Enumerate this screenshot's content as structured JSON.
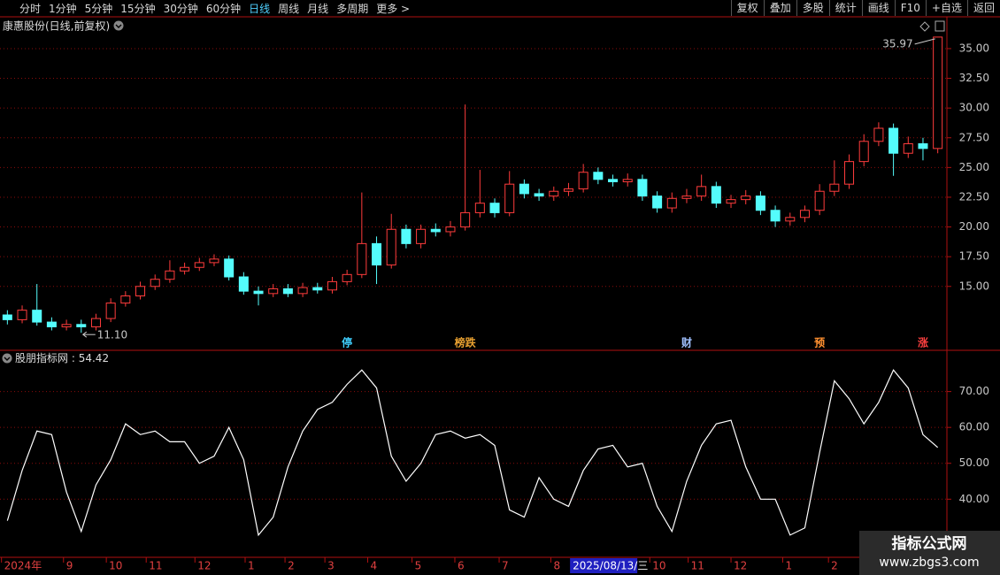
{
  "toolbar": {
    "periods": [
      "分时",
      "1分钟",
      "5分钟",
      "15分钟",
      "30分钟",
      "60分钟",
      "日线",
      "周线",
      "月线",
      "多周期",
      "更多 >"
    ],
    "active_index": 6,
    "buttons": [
      "复权",
      "叠加",
      "多股",
      "统计",
      "画线",
      "F10",
      "+自选",
      "返回"
    ]
  },
  "chart_data": [
    {
      "type": "candlestick",
      "title": "康惠股份(日线,前复权)",
      "open": [
        12.6,
        12.2,
        13.0,
        12.0,
        11.6,
        11.8,
        11.6,
        12.3,
        13.6,
        14.2,
        15.0,
        15.6,
        16.3,
        16.6,
        17.0,
        17.3,
        15.8,
        14.6,
        14.4,
        14.8,
        14.4,
        14.9,
        14.7,
        15.4,
        16.0,
        18.6,
        16.8,
        19.8,
        18.6,
        19.8,
        19.6,
        20.0,
        21.2,
        22.0,
        21.2,
        23.6,
        22.8,
        22.6,
        23.0,
        23.2,
        24.6,
        24.0,
        23.8,
        24.0,
        22.6,
        21.6,
        22.4,
        22.6,
        23.4,
        22.0,
        22.3,
        22.6,
        21.4,
        20.5,
        20.8,
        21.4,
        23.0,
        23.6,
        25.5,
        27.2,
        28.3,
        26.2,
        27.0,
        26.6
      ],
      "high": [
        13.0,
        13.4,
        15.2,
        12.4,
        12.2,
        12.2,
        12.7,
        14.0,
        14.6,
        15.4,
        16.0,
        17.2,
        17.0,
        17.4,
        17.7,
        17.6,
        16.2,
        15.0,
        15.2,
        15.2,
        15.3,
        15.3,
        15.8,
        16.4,
        22.9,
        19.2,
        21.1,
        20.2,
        20.2,
        20.3,
        20.5,
        30.3,
        24.8,
        22.4,
        24.7,
        24.0,
        23.2,
        23.4,
        23.7,
        25.3,
        25.0,
        24.4,
        24.5,
        24.4,
        23.0,
        22.9,
        23.2,
        24.4,
        23.8,
        22.7,
        23.1,
        23.0,
        21.8,
        21.2,
        21.8,
        23.6,
        25.6,
        26.1,
        27.8,
        28.8,
        28.7,
        27.6,
        27.5,
        35.97
      ],
      "low": [
        11.8,
        11.9,
        11.7,
        11.3,
        11.3,
        11.1,
        11.3,
        12.0,
        13.3,
        13.9,
        14.7,
        15.3,
        16.0,
        16.3,
        16.7,
        15.5,
        14.3,
        13.4,
        14.1,
        14.1,
        14.1,
        14.4,
        14.4,
        15.1,
        15.7,
        15.2,
        16.5,
        18.2,
        18.2,
        19.2,
        19.2,
        19.7,
        20.8,
        20.8,
        20.9,
        22.4,
        22.2,
        22.2,
        22.6,
        22.9,
        23.6,
        23.4,
        23.4,
        22.2,
        21.2,
        21.2,
        22.0,
        22.2,
        21.6,
        21.6,
        21.9,
        21.0,
        20.0,
        20.1,
        20.4,
        21.0,
        22.6,
        23.2,
        25.1,
        26.8,
        24.3,
        25.8,
        25.6,
        26.2
      ],
      "close": [
        12.2,
        13.0,
        12.0,
        11.6,
        11.8,
        11.6,
        12.3,
        13.6,
        14.2,
        15.0,
        15.6,
        16.3,
        16.6,
        17.0,
        17.3,
        15.8,
        14.6,
        14.4,
        14.8,
        14.4,
        14.9,
        14.7,
        15.4,
        16.0,
        18.6,
        16.8,
        19.8,
        18.6,
        19.8,
        19.6,
        20.0,
        21.2,
        22.0,
        21.2,
        23.6,
        22.8,
        22.6,
        23.0,
        23.2,
        24.6,
        24.0,
        23.8,
        24.0,
        22.6,
        21.6,
        22.4,
        22.6,
        23.4,
        22.0,
        22.3,
        22.6,
        21.4,
        20.5,
        20.8,
        21.4,
        23.0,
        23.6,
        25.5,
        27.2,
        28.3,
        26.2,
        27.0,
        26.6,
        35.97
      ],
      "max_label": "35.97",
      "min_label": "11.10",
      "up_color": "#ff3c3c",
      "down_color": "#54fcfc",
      "ylim": [
        9.7,
        37.6
      ],
      "yticks": [
        {
          "value": 15,
          "label": "15.00"
        },
        {
          "value": 17.5,
          "label": "17.50"
        },
        {
          "value": 20,
          "label": "20.00"
        },
        {
          "value": 22.5,
          "label": "22.50"
        },
        {
          "value": 25,
          "label": "25.00"
        },
        {
          "value": 27.5,
          "label": "27.50"
        },
        {
          "value": 30,
          "label": "30.00"
        },
        {
          "value": 32.5,
          "label": "32.50"
        },
        {
          "value": 35,
          "label": "35.00"
        }
      ],
      "grid": true,
      "markers": [
        {
          "index": 23,
          "label": "停",
          "color": "#40d0ff"
        },
        {
          "index": 31,
          "label": "榜跌",
          "color": "#e8a030"
        },
        {
          "index": 46,
          "label": "财",
          "color": "#a0c0ff"
        },
        {
          "index": 55,
          "label": "预",
          "color": "#ff9030"
        },
        {
          "index": 62,
          "label": "涨",
          "color": "#ff4040"
        }
      ]
    },
    {
      "type": "line",
      "series": [
        {
          "name": "股朋指标网",
          "color": "#ffffff",
          "values": [
            34,
            48,
            59,
            58,
            42,
            31,
            44,
            51,
            61,
            58,
            59,
            56,
            56,
            50,
            52,
            60,
            51,
            30,
            35,
            49,
            59,
            65,
            67,
            72,
            76,
            71,
            52,
            45,
            50,
            58,
            59,
            57,
            58,
            55,
            37,
            35,
            46,
            40,
            38,
            48,
            54,
            55,
            49,
            50,
            38,
            31,
            45,
            55,
            61,
            62,
            49,
            40,
            40,
            30,
            32,
            53,
            73,
            68,
            61,
            67,
            76,
            71,
            58,
            54.42
          ]
        }
      ],
      "value_separator": ":",
      "ylim": [
        23.8,
        81
      ],
      "yticks": [
        {
          "value": 40,
          "label": "40.00"
        },
        {
          "value": 50,
          "label": "50.00"
        },
        {
          "value": 60,
          "label": "60.00"
        },
        {
          "value": 70,
          "label": "70.00"
        }
      ],
      "grid": true
    }
  ],
  "x_axis": {
    "ticks": [
      {
        "value": 0.1,
        "label": "2024年"
      },
      {
        "value": 4.3,
        "label": "9"
      },
      {
        "value": 7.2,
        "label": "10"
      },
      {
        "value": 9.9,
        "label": "11"
      },
      {
        "value": 13.2,
        "label": "12"
      },
      {
        "value": 16.6,
        "label": "1"
      },
      {
        "value": 19.3,
        "label": "2"
      },
      {
        "value": 22,
        "label": "3"
      },
      {
        "value": 24.9,
        "label": "4"
      },
      {
        "value": 27.9,
        "label": "5"
      },
      {
        "value": 30.8,
        "label": "6"
      },
      {
        "value": 33.8,
        "label": "7"
      },
      {
        "value": 37.3,
        "label": "8"
      },
      {
        "value": 44,
        "label": "10"
      },
      {
        "value": 46.6,
        "label": "11"
      },
      {
        "value": 49.5,
        "label": "12"
      },
      {
        "value": 53,
        "label": "1"
      },
      {
        "value": 56.1,
        "label": "2"
      }
    ],
    "cursor": {
      "value": 38.6,
      "label": "2025/08/13/三"
    }
  },
  "watermark": {
    "title": "指标公式网",
    "url": "www.zbgs3.com"
  }
}
